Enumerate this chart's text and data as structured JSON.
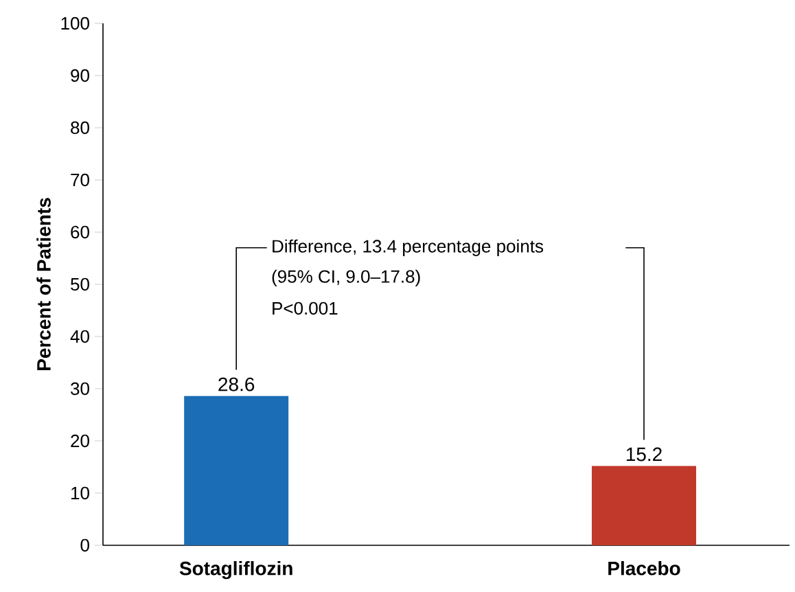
{
  "chart_data": {
    "type": "bar",
    "ylabel": "Percent of Patients",
    "categories": [
      "Sotagliflozin",
      "Placebo"
    ],
    "values": [
      28.6,
      15.2
    ],
    "colors": [
      "#1b6db5",
      "#c1392b"
    ],
    "data_labels": true,
    "ylim": [
      0,
      100
    ],
    "yticks": [
      0,
      10,
      20,
      30,
      40,
      50,
      60,
      70,
      80,
      90,
      100
    ],
    "annotations": [
      "Difference, 13.4 percentage points",
      "(95% CI, 9.0–17.8)",
      "P<0.001"
    ],
    "grid": false
  }
}
